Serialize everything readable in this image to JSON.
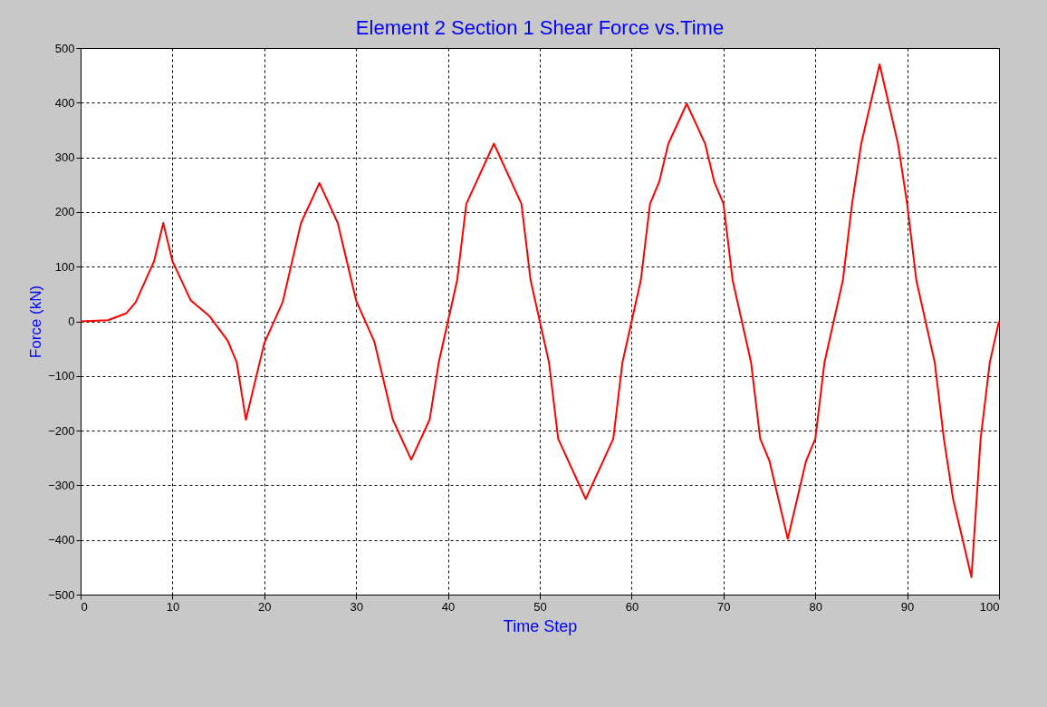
{
  "chart_data": {
    "type": "line",
    "title": "Element 2 Section 1 Shear Force vs.Time",
    "xlabel": "Time Step",
    "ylabel": "Force (kN)",
    "series": [
      {
        "color": "#ff0000",
        "x": [
          0,
          3,
          5,
          6,
          8,
          9,
          10,
          12,
          14,
          16,
          17,
          18,
          20,
          22,
          24,
          26,
          28,
          30,
          32,
          34,
          36,
          38,
          39,
          41,
          42,
          45,
          48,
          49,
          50,
          51,
          52,
          55,
          58,
          59,
          61,
          62,
          63,
          64,
          66,
          68,
          69,
          70,
          71,
          73,
          74,
          75,
          77,
          79,
          80,
          81,
          83,
          84,
          85,
          87,
          89,
          90,
          91,
          93,
          94,
          95,
          97,
          98,
          99,
          100
        ],
        "values": [
          0,
          2,
          15,
          35,
          110,
          180,
          110,
          38,
          10,
          -35,
          -75,
          -180,
          -40,
          35,
          180,
          253,
          180,
          38,
          -38,
          -180,
          -253,
          -180,
          -75,
          75,
          215,
          325,
          215,
          75,
          0,
          -75,
          -215,
          -325,
          -215,
          -75,
          75,
          215,
          255,
          325,
          398,
          325,
          255,
          215,
          75,
          -75,
          -215,
          -255,
          -398,
          -255,
          -215,
          -75,
          75,
          215,
          325,
          470,
          325,
          215,
          75,
          -75,
          -215,
          -325,
          -468,
          -215,
          -75,
          0
        ]
      }
    ],
    "xlim": [
      0,
      100
    ],
    "xticks": [
      0,
      10,
      20,
      30,
      40,
      50,
      60,
      70,
      80,
      90,
      100
    ],
    "ylim": [
      -500,
      500
    ],
    "yticks": [
      -500,
      -400,
      -300,
      -200,
      -100,
      0,
      100,
      200,
      300,
      400,
      500
    ],
    "grid": true,
    "line_style": "solid"
  }
}
